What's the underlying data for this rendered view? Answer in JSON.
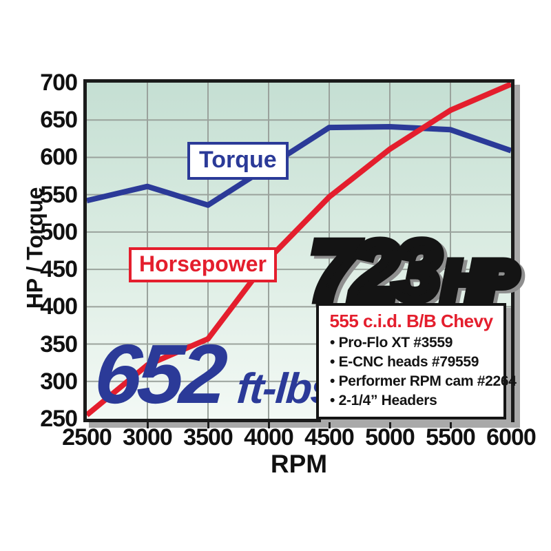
{
  "chart_data": {
    "type": "line",
    "title": "",
    "x_label": "RPM",
    "y_label": "HP / Torque",
    "x": [
      2500,
      3000,
      3500,
      4000,
      4500,
      5000,
      5500,
      6000
    ],
    "xlim": [
      2500,
      6000
    ],
    "ylim": [
      250,
      700
    ],
    "xticks": [
      2500,
      3000,
      3500,
      4000,
      4500,
      5000,
      5500,
      6000
    ],
    "yticks": [
      700,
      650,
      600,
      550,
      500,
      450,
      400,
      350,
      300,
      250
    ],
    "grid": true,
    "legend_position": "boxed-labels-on-plot",
    "series": [
      {
        "name": "Torque",
        "color": "#2b3a98",
        "values": [
          542,
          561,
          536,
          588,
          640,
          641,
          637,
          609
        ]
      },
      {
        "name": "Horsepower",
        "color": "#e41e2d",
        "values": [
          255,
          322,
          357,
          464,
          547,
          611,
          663,
          698
        ]
      }
    ]
  },
  "series_labels": {
    "torque": "Torque",
    "horsepower": "Horsepower"
  },
  "callouts": {
    "hp_number": "723",
    "hp_unit": "HP",
    "torque_number": "652",
    "torque_unit": "ft-lbs"
  },
  "spec_box": {
    "title": "555 c.i.d. B/B Chevy",
    "bullet": "•",
    "items": [
      "Pro-Flo XT #3559",
      "E-CNC heads #79559",
      "Performer RPM cam #2264",
      "2-1/4” Headers"
    ]
  },
  "colors": {
    "torque_line": "#2b3a98",
    "horsepower_line": "#e41e2d",
    "grid_line": "#9aa29c",
    "plot_border": "#1b1b1b",
    "frame_shadow": "#a9a9a9",
    "plot_bg_top": "#c5dfd3",
    "plot_bg_bottom": "#f3f9f5",
    "hp_gradient_top": "#fdf5cf",
    "hp_gradient_mid": "#fdd42f",
    "hp_gradient_bottom": "#ef8a1d",
    "tick_text": "#111111"
  }
}
